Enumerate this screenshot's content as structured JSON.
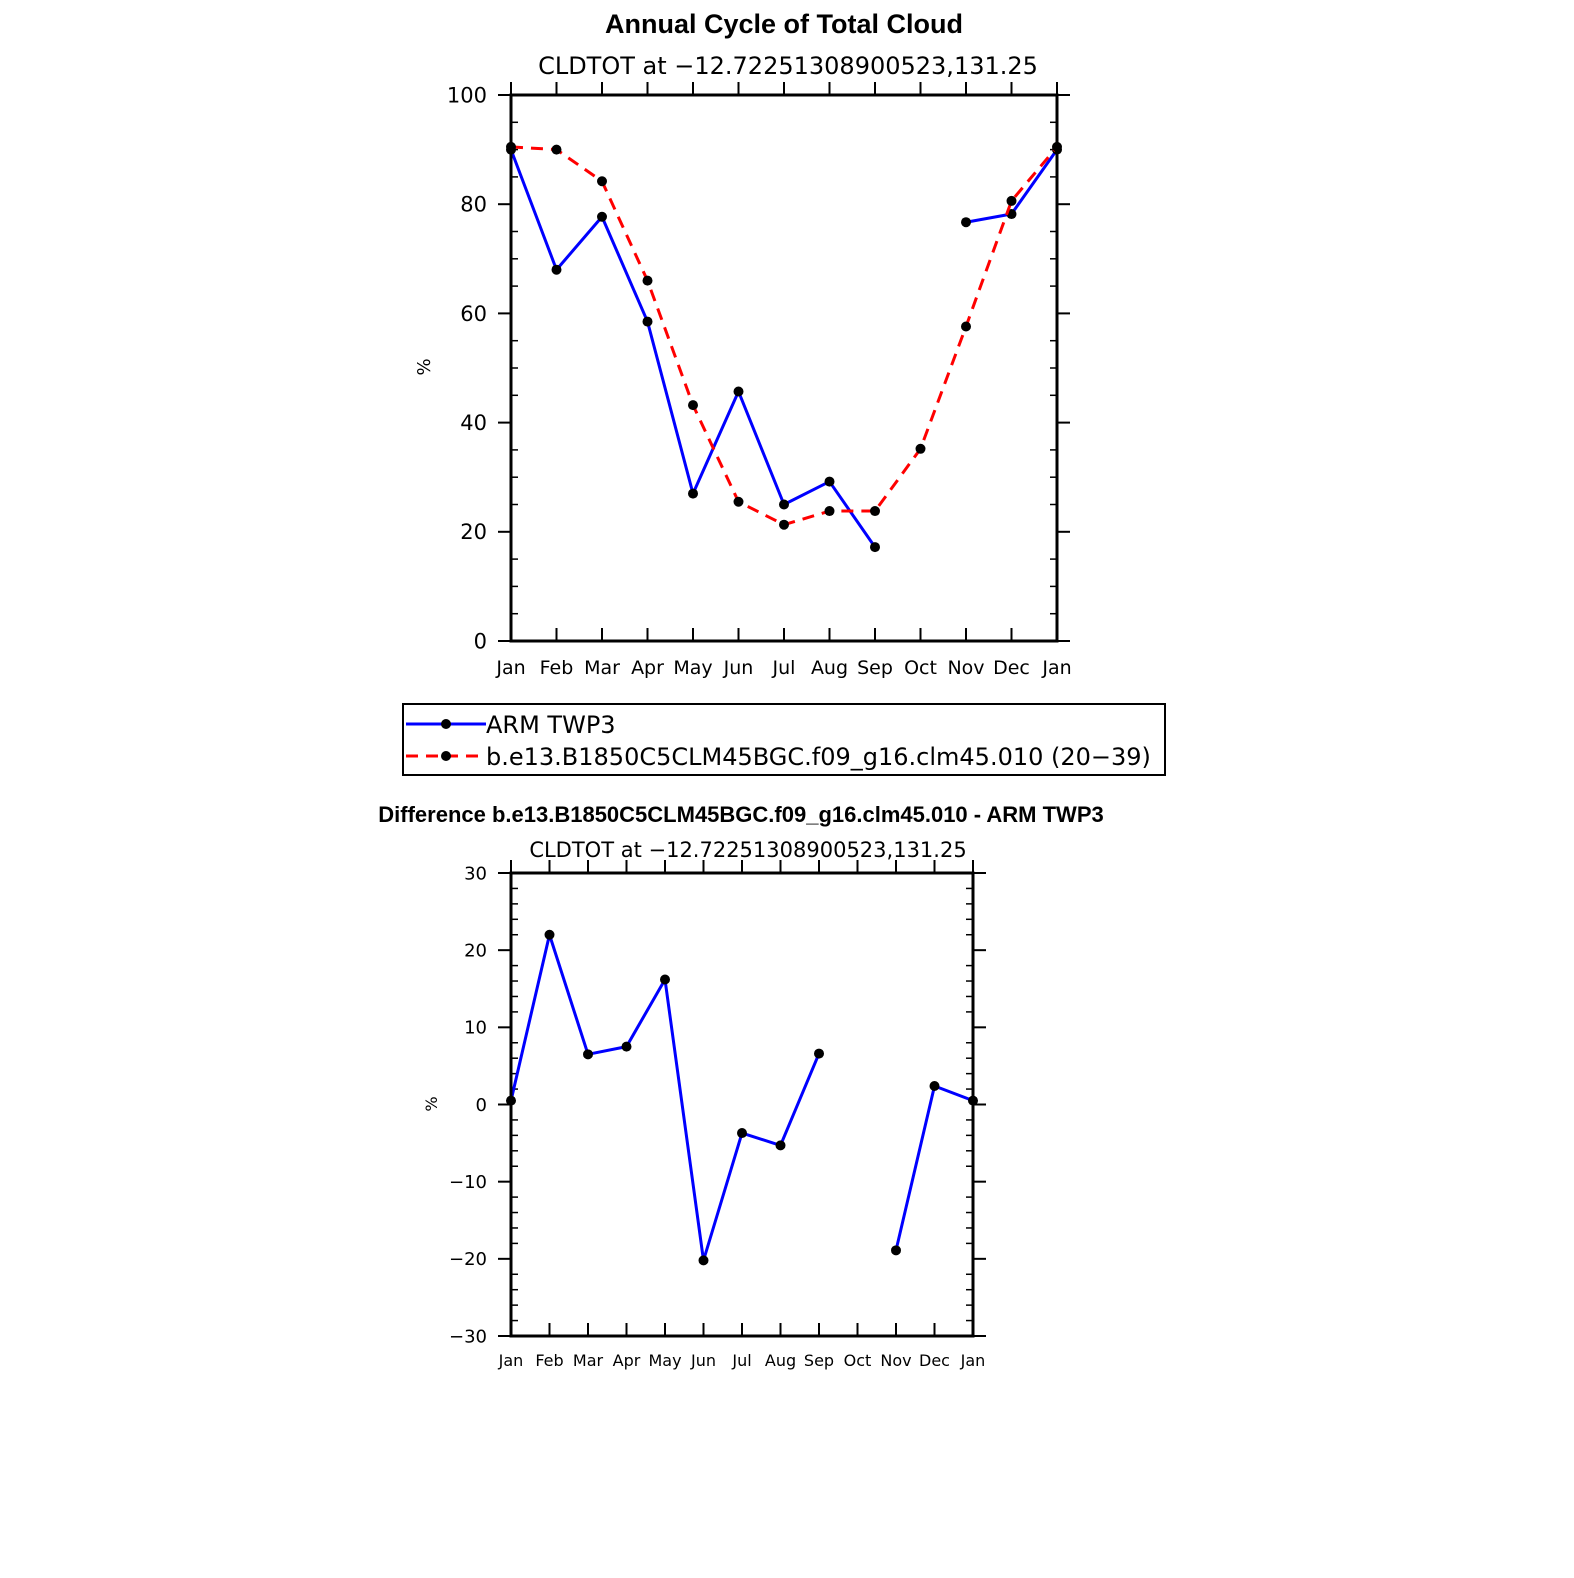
{
  "chart_data": [
    {
      "type": "line",
      "title": "Annual Cycle of Total Cloud",
      "subtitle": "CLDTOT at −12.72251308900523,131.25",
      "ylabel": "%",
      "ylim": [
        0,
        100
      ],
      "yticks": [
        0,
        20,
        40,
        60,
        80,
        100
      ],
      "ytick_labels": [
        "0",
        "20",
        "40",
        "60",
        "80",
        "100"
      ],
      "categories": [
        "Jan",
        "Feb",
        "Mar",
        "Apr",
        "May",
        "Jun",
        "Jul",
        "Aug",
        "Sep",
        "Oct",
        "Nov",
        "Dec",
        "Jan"
      ],
      "series": [
        {
          "name": "ARM TWP3",
          "color": "#0000ff",
          "dash": "solid",
          "values": [
            90,
            68,
            77.7,
            58.5,
            27,
            45.7,
            25,
            29.2,
            17.2,
            null,
            76.7,
            78.2,
            90
          ]
        },
        {
          "name": "b.e13.B1850C5CLM45BGC.f09_g16.clm45.010 (20−39)",
          "color": "#ff0000",
          "dash": "dashed",
          "values": [
            90.5,
            90,
            84.2,
            66,
            43.2,
            25.5,
            21.3,
            23.8,
            23.8,
            35.2,
            57.6,
            80.6,
            90.5
          ]
        }
      ],
      "legend": "below"
    },
    {
      "type": "line",
      "title": "Difference b.e13.B1850C5CLM45BGC.f09_g16.clm45.010 - ARM TWP3",
      "subtitle": "CLDTOT at −12.72251308900523,131.25",
      "ylabel": "%",
      "ylim": [
        -30,
        30
      ],
      "yticks": [
        -30,
        -20,
        -10,
        0,
        10,
        20,
        30
      ],
      "ytick_labels": [
        "−30",
        "−20",
        "−10",
        "0",
        "10",
        "20",
        "30"
      ],
      "categories": [
        "Jan",
        "Feb",
        "Mar",
        "Apr",
        "May",
        "Jun",
        "Jul",
        "Aug",
        "Sep",
        "Oct",
        "Nov",
        "Dec",
        "Jan"
      ],
      "series": [
        {
          "name": "Difference",
          "color": "#0000ff",
          "dash": "solid",
          "values": [
            0.5,
            22,
            6.5,
            7.5,
            16.2,
            -20.2,
            -3.7,
            -5.3,
            6.6,
            null,
            -18.9,
            2.4,
            0.5
          ]
        }
      ]
    }
  ]
}
